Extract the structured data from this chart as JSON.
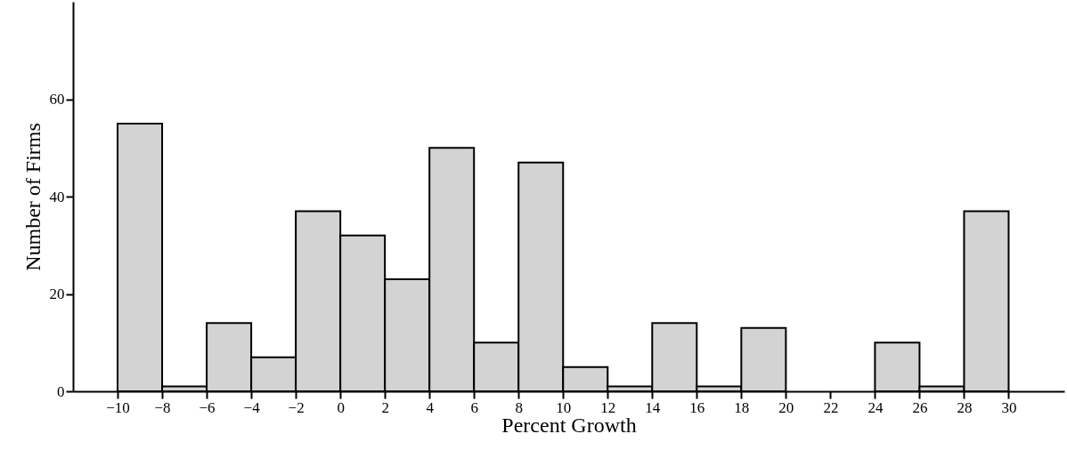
{
  "chart_data": {
    "type": "histogram",
    "xlabel": "Percent Growth",
    "ylabel": "Number of Firms",
    "bins": [
      -10,
      -8,
      -6,
      -4,
      -2,
      0,
      2,
      4,
      6,
      8,
      10,
      12,
      14,
      16,
      18,
      20,
      22,
      24,
      26,
      28,
      30
    ],
    "values": [
      55,
      1,
      14,
      7,
      37,
      32,
      23,
      50,
      10,
      47,
      5,
      1,
      14,
      1,
      13,
      0,
      0,
      10,
      1,
      37
    ],
    "color": "#d3d3d3",
    "xlim": [
      -12,
      32.5
    ],
    "ylim": [
      0,
      80
    ],
    "xticks": [
      -10,
      -8,
      -6,
      -4,
      -2,
      0,
      2,
      4,
      6,
      8,
      10,
      12,
      14,
      16,
      18,
      20,
      22,
      24,
      26,
      28,
      30
    ],
    "yticks": [
      0,
      20,
      40,
      60
    ],
    "grid": false
  }
}
